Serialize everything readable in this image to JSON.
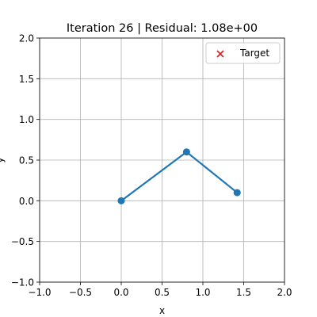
{
  "chart_data": {
    "type": "line",
    "title": "Iteration 26 | Residual: 1.08e+00",
    "xlabel": "x",
    "ylabel": "y",
    "xlim": [
      -1.0,
      2.0
    ],
    "ylim": [
      -1.0,
      2.0
    ],
    "grid": true,
    "legend_position": "top-right",
    "x_ticks": [
      -1.0,
      -0.5,
      0.0,
      0.5,
      1.0,
      1.5,
      2.0
    ],
    "y_ticks": [
      -1.0,
      -0.5,
      0.0,
      0.5,
      1.0,
      1.5,
      2.0
    ],
    "x_tick_labels": [
      "−1.0",
      "−0.5",
      "0.0",
      "0.5",
      "1.0",
      "1.5",
      "2.0"
    ],
    "y_tick_labels": [
      "−1.0",
      "−0.5",
      "0.0",
      "0.5",
      "1.0",
      "1.5",
      "2.0"
    ],
    "series": [
      {
        "x": [
          0.0,
          0.8,
          1.42
        ],
        "y": [
          0.0,
          0.6,
          0.1
        ],
        "color": "#1f77b4",
        "marker": "circle"
      }
    ],
    "legend": [
      {
        "label": "Target",
        "marker": "x",
        "color": "#d62728"
      }
    ]
  }
}
